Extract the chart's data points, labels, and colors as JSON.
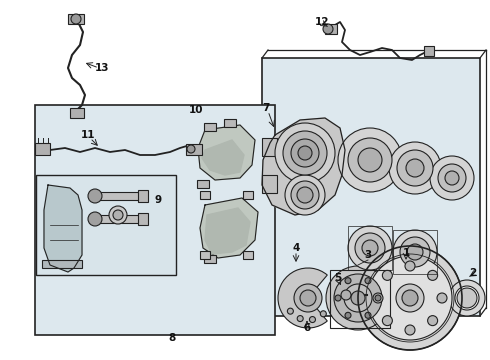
{
  "bg_color": "#ffffff",
  "line_color": "#222222",
  "light_gray": "#cccccc",
  "med_gray": "#888888",
  "panel_bg": "#dde8ee",
  "box_bg": "#dde8ee",
  "label_color": "#111111",
  "figsize": [
    4.9,
    3.6
  ],
  "dpi": 100
}
